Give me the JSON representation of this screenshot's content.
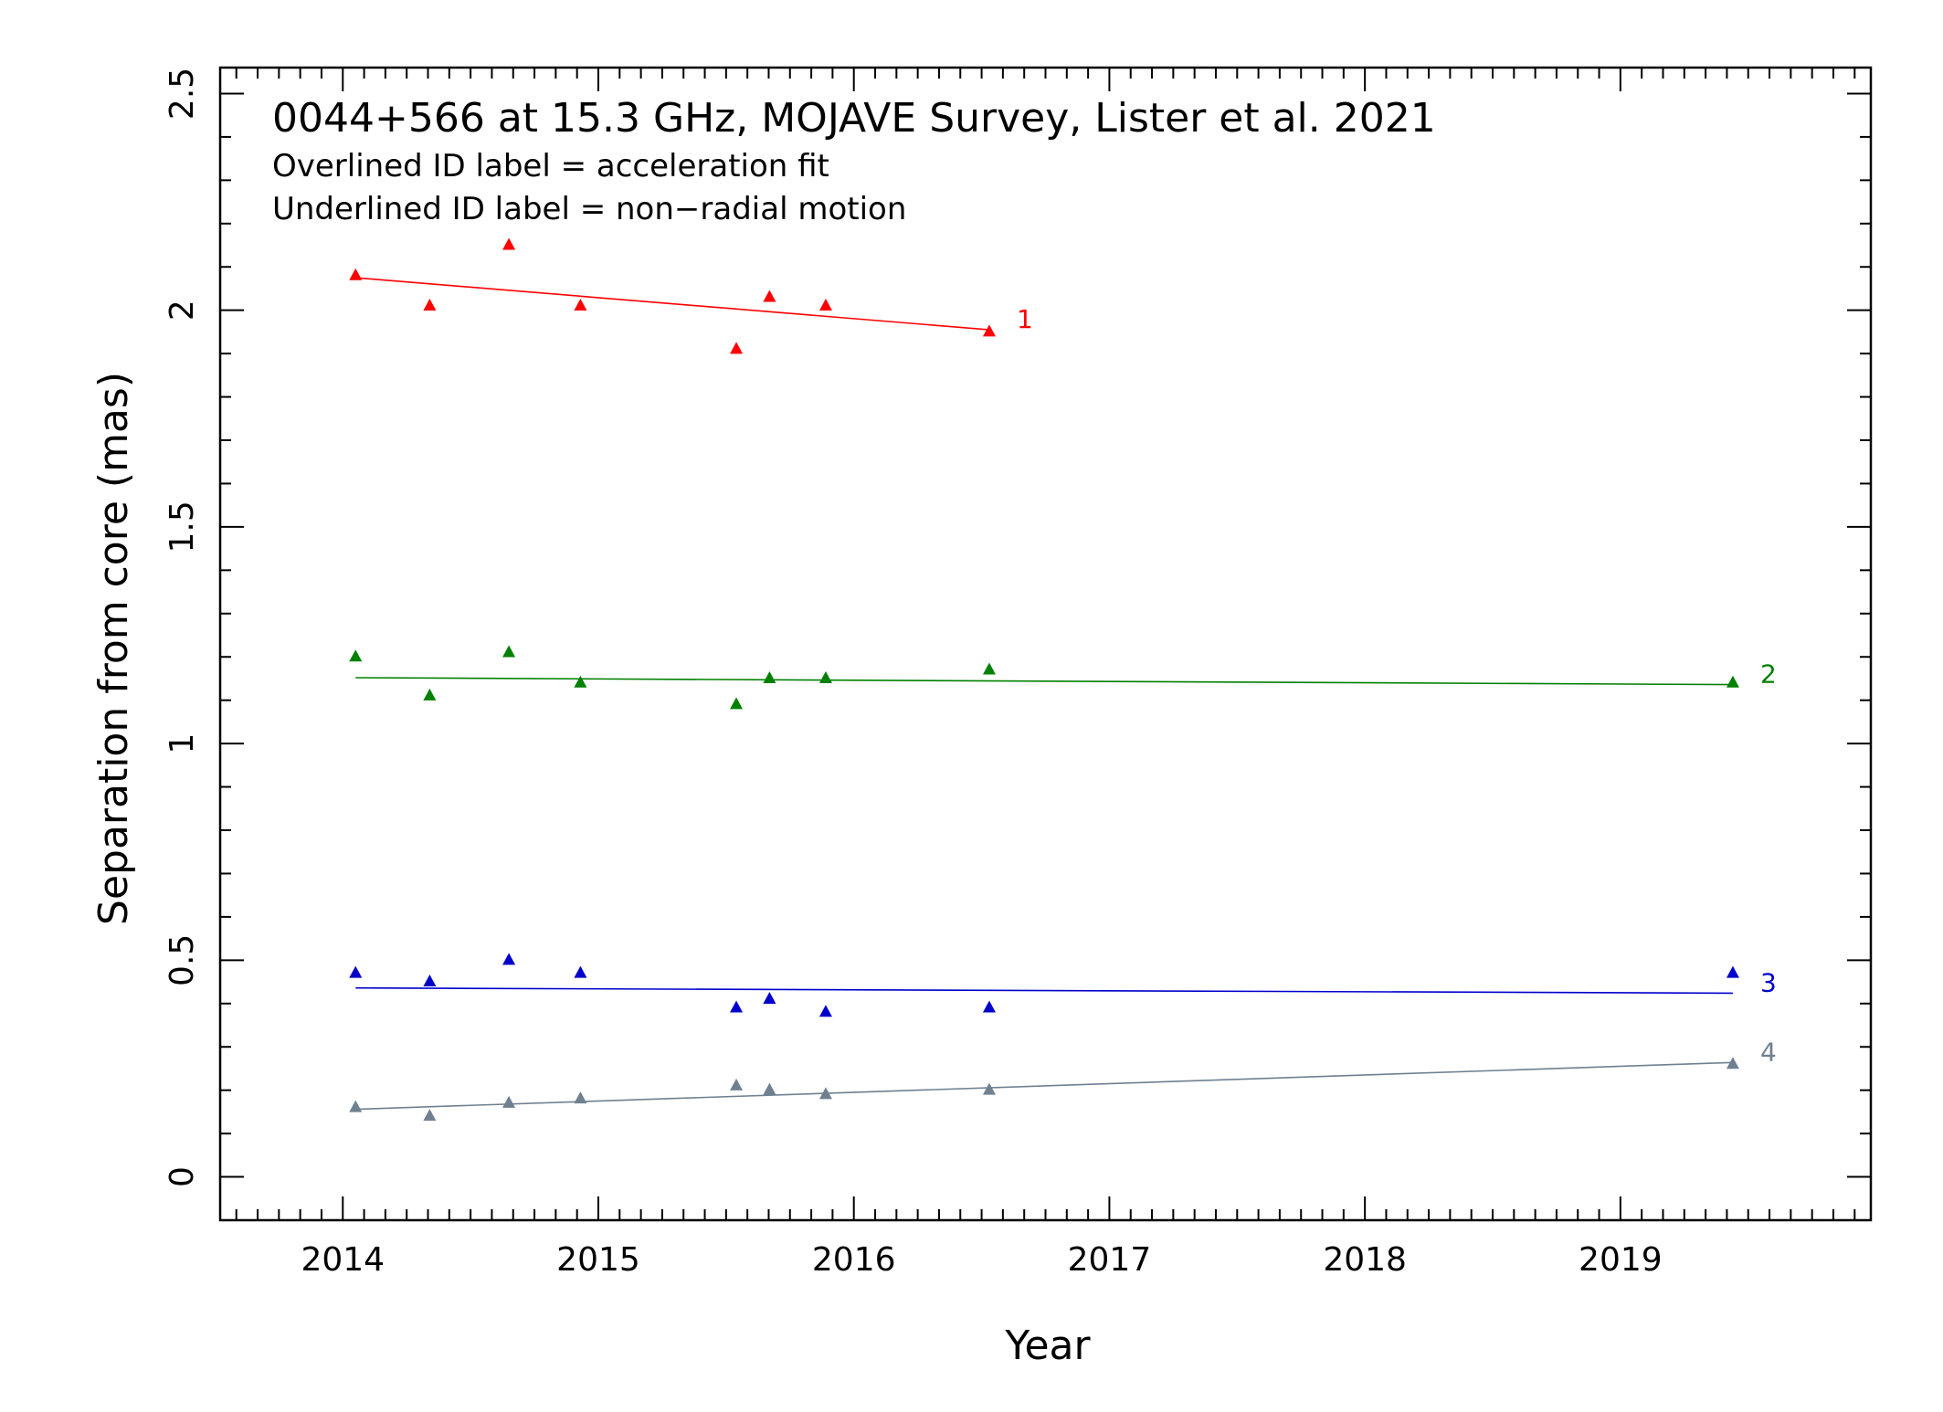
{
  "chart_data": {
    "type": "scatter",
    "title": "0044+566 at 15.3 GHz, MOJAVE Survey, Lister et al. 2021",
    "subtitle_lines": [
      "Overlined ID label = acceleration fit",
      "Underlined ID label = non−radial motion"
    ],
    "xlabel": "Year",
    "ylabel": "Separation from core (mas)",
    "xlim": [
      2013.52,
      2019.98
    ],
    "ylim": [
      -0.1,
      2.56
    ],
    "xticks": [
      2014,
      2015,
      2016,
      2017,
      2018,
      2019
    ],
    "xtick_labels": [
      "2014",
      "2015",
      "2016",
      "2017",
      "2018",
      "2019"
    ],
    "yticks": [
      0,
      0.5,
      1,
      1.5,
      2,
      2.5
    ],
    "ytick_labels": [
      "0",
      "0.5",
      "1",
      "1.5",
      "2",
      "2.5"
    ],
    "grid": false,
    "series": [
      {
        "name": "1",
        "color": "#ff0000",
        "x": [
          2014.05,
          2014.34,
          2014.65,
          2014.93,
          2015.54,
          2015.67,
          2015.89,
          2016.53
        ],
        "y": [
          2.08,
          2.01,
          2.15,
          2.01,
          1.91,
          2.03,
          2.01,
          1.95
        ],
        "fit": {
          "x": [
            2014.05,
            2016.53
          ],
          "y": [
            2.075,
            1.955
          ]
        }
      },
      {
        "name": "2",
        "color": "#008000",
        "x": [
          2014.05,
          2014.34,
          2014.65,
          2014.93,
          2015.54,
          2015.67,
          2015.89,
          2016.53,
          2019.44
        ],
        "y": [
          1.2,
          1.11,
          1.21,
          1.14,
          1.09,
          1.15,
          1.15,
          1.17,
          1.14
        ],
        "fit": {
          "x": [
            2014.05,
            2019.44
          ],
          "y": [
            1.152,
            1.136
          ]
        }
      },
      {
        "name": "3",
        "color": "#0000cc",
        "x": [
          2014.05,
          2014.34,
          2014.65,
          2014.93,
          2015.54,
          2015.67,
          2015.89,
          2016.53,
          2019.44
        ],
        "y": [
          0.47,
          0.45,
          0.5,
          0.47,
          0.39,
          0.41,
          0.38,
          0.39,
          0.47
        ],
        "fit": {
          "x": [
            2014.05,
            2019.44
          ],
          "y": [
            0.436,
            0.424
          ]
        }
      },
      {
        "name": "4",
        "color": "#708090",
        "x": [
          2014.05,
          2014.34,
          2014.65,
          2014.93,
          2015.54,
          2015.67,
          2015.89,
          2016.53,
          2019.44
        ],
        "y": [
          0.16,
          0.14,
          0.17,
          0.18,
          0.21,
          0.2,
          0.19,
          0.2,
          0.26
        ],
        "fit": {
          "x": [
            2014.05,
            2019.44
          ],
          "y": [
            0.156,
            0.264
          ]
        }
      }
    ]
  }
}
